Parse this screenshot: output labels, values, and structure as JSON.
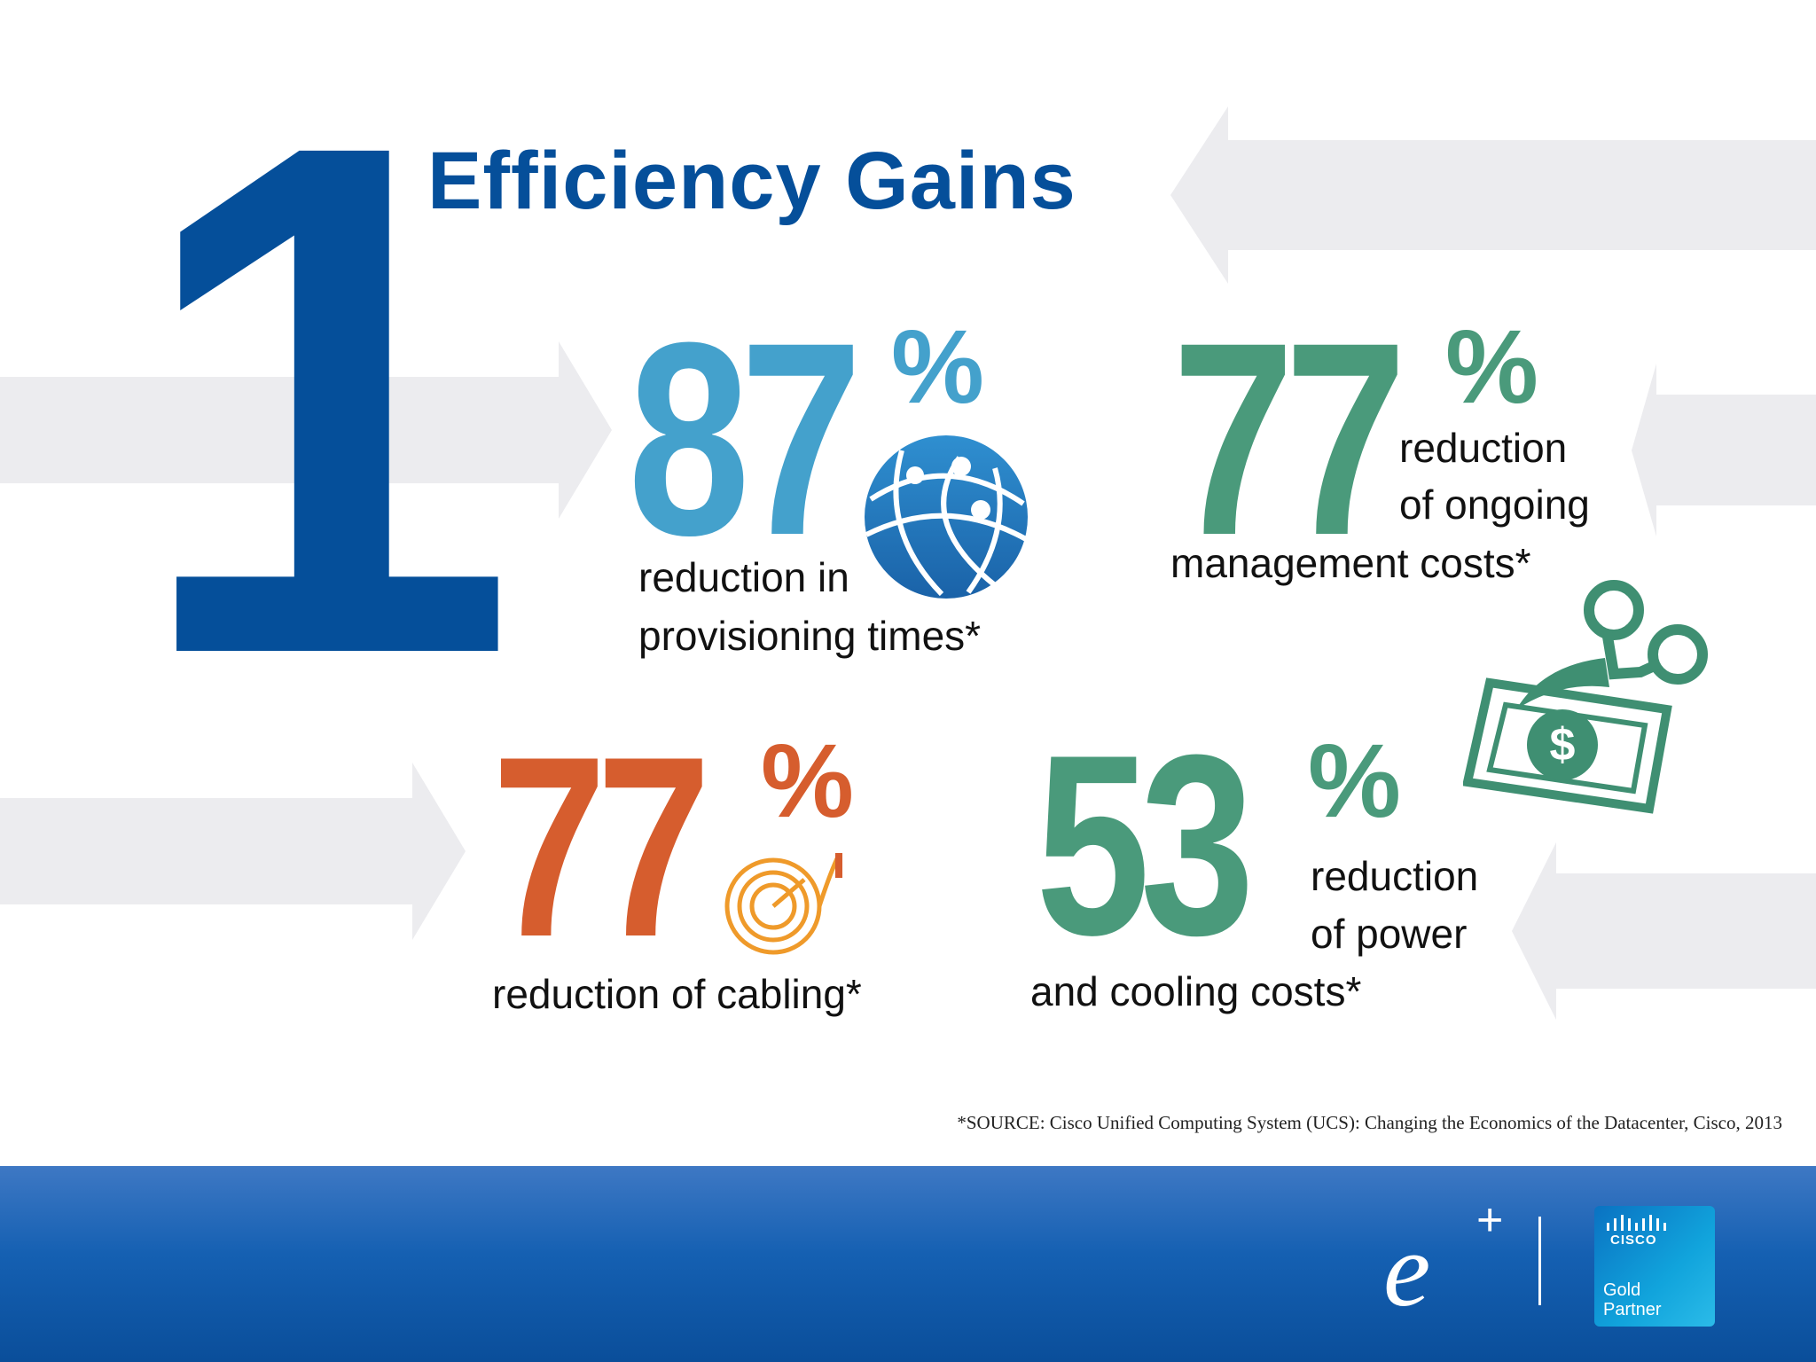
{
  "heading": {
    "number": "1",
    "title": "Efficiency Gains"
  },
  "stats": [
    {
      "value": "87",
      "percent": "%",
      "line1": "reduction in",
      "line2": "provisioning times*",
      "color": "#44a1cc"
    },
    {
      "value": "77",
      "percent": "%",
      "line1": "reduction",
      "line2": "of ongoing",
      "line3": "management costs*",
      "color": "#4a9a7b"
    },
    {
      "value": "77",
      "percent": "%",
      "line1": "reduction of cabling*",
      "color": "#d65d2e"
    },
    {
      "value": "53",
      "percent": "%",
      "line1": "reduction",
      "line2": "of power",
      "line3": "and cooling costs*",
      "color": "#4a9a7b"
    }
  ],
  "icons": {
    "globe": "globe-network-icon",
    "cable": "coiled-cable-icon",
    "money": "money-scissors-icon"
  },
  "source": "*SOURCE: Cisco Unified Computing System (UCS): Changing the Economics of the Datacenter, Cisco, 2013",
  "footer": {
    "eplus": "e",
    "eplus_sup": "+",
    "badge_brand": "CISCO",
    "badge_line1": "Gold",
    "badge_line2": "Partner"
  },
  "colors": {
    "brand_blue": "#054f9a",
    "blue_stat": "#44a1cc",
    "green_stat": "#4a9a7b",
    "orange_stat": "#d65d2e",
    "arrow_gray": "#ececef"
  }
}
